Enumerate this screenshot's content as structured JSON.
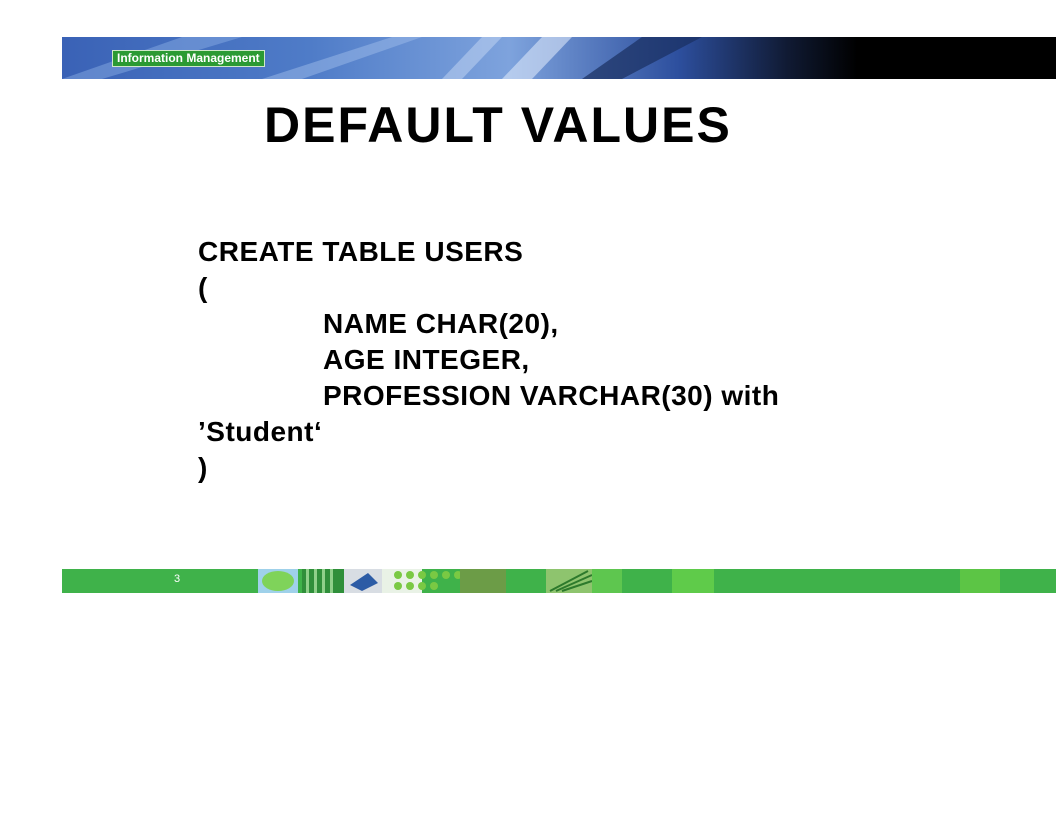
{
  "header": {
    "brand_label": "Information Management"
  },
  "slide": {
    "title": "DEFAULT VALUES",
    "code_lines": [
      "CREATE TABLE USERS",
      "(",
      "NAME CHAR(20),",
      "AGE INTEGER,",
      "PROFESSION VARCHAR(30) with",
      "’Student‘",
      ")"
    ]
  },
  "footer": {
    "page_number": "3"
  },
  "colors": {
    "header_blue": "#4f7cc8",
    "brand_green": "#2b9a33",
    "footer_green": "#3fb24a"
  }
}
